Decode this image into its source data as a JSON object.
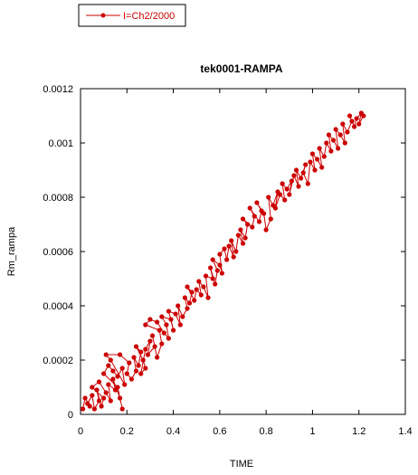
{
  "chart_data": {
    "type": "line",
    "title": "tek0001-RAMPA",
    "xlabel": "TIME",
    "ylabel": "Rm_rampa",
    "xlim": [
      0,
      1.4
    ],
    "ylim": [
      0,
      0.0012
    ],
    "x_ticks": [
      "0",
      "0.2",
      "0.4",
      "0.6",
      "0.8",
      "1",
      "1.2",
      "1.4"
    ],
    "y_ticks": [
      "0",
      "0.0002",
      "0.0004",
      "0.0006",
      "0.0008",
      "0.001",
      "0.0012"
    ],
    "grid": false,
    "legend": {
      "position": "top-left-outside",
      "entries": [
        "I=Ch2/2000"
      ]
    },
    "series": [
      {
        "name": "I=Ch2/2000",
        "color": "#cc0000",
        "marker": "circle",
        "points": [
          [
            0.01,
            2e-05
          ],
          [
            0.02,
            6e-05
          ],
          [
            0.04,
            3e-05
          ],
          [
            0.03,
            4e-05
          ],
          [
            0.05,
            7e-05
          ],
          [
            0.06,
            2e-05
          ],
          [
            0.08,
            5e-05
          ],
          [
            0.07,
            9e-05
          ],
          [
            0.09,
            3e-05
          ],
          [
            0.1,
            6e-05
          ],
          [
            0.05,
            0.0001
          ],
          [
            0.08,
            0.00012
          ],
          [
            0.11,
            8e-05
          ],
          [
            0.13,
            5e-05
          ],
          [
            0.12,
            0.00011
          ],
          [
            0.15,
            9e-05
          ],
          [
            0.14,
            0.00013
          ],
          [
            0.17,
            6e-05
          ],
          [
            0.18,
            2e-05
          ],
          [
            0.16,
            0.0001
          ],
          [
            0.1,
            0.00015
          ],
          [
            0.12,
            0.00018
          ],
          [
            0.14,
            0.00016
          ],
          [
            0.16,
            0.00014
          ],
          [
            0.18,
            0.00017
          ],
          [
            0.19,
            0.00011
          ],
          [
            0.13,
            0.0002
          ],
          [
            0.11,
            0.00022
          ],
          [
            0.17,
            0.00022
          ],
          [
            0.21,
            0.00019
          ],
          [
            0.2,
            0.00015
          ],
          [
            0.22,
            0.00013
          ],
          [
            0.24,
            0.00016
          ],
          [
            0.23,
            0.00021
          ],
          [
            0.25,
            0.00018
          ],
          [
            0.26,
            0.00023
          ],
          [
            0.24,
            0.00025
          ],
          [
            0.27,
            0.0002
          ],
          [
            0.28,
            0.00017
          ],
          [
            0.26,
            0.00015
          ],
          [
            0.28,
            0.00024
          ],
          [
            0.3,
            0.00027
          ],
          [
            0.29,
            0.00022
          ],
          [
            0.32,
            0.00025
          ],
          [
            0.31,
            0.00029
          ],
          [
            0.33,
            0.00021
          ],
          [
            0.35,
            0.00026
          ],
          [
            0.34,
            0.00031
          ],
          [
            0.28,
            0.00033
          ],
          [
            0.3,
            0.00035
          ],
          [
            0.33,
            0.00034
          ],
          [
            0.36,
            0.0003
          ],
          [
            0.38,
            0.00028
          ],
          [
            0.37,
            0.00033
          ],
          [
            0.35,
            0.00036
          ],
          [
            0.39,
            0.00035
          ],
          [
            0.4,
            0.00031
          ],
          [
            0.38,
            0.00038
          ],
          [
            0.41,
            0.00037
          ],
          [
            0.43,
            0.00033
          ],
          [
            0.42,
            0.0004
          ],
          [
            0.44,
            0.00036
          ],
          [
            0.46,
            0.00039
          ],
          [
            0.45,
            0.00043
          ],
          [
            0.47,
            0.00041
          ],
          [
            0.48,
            0.00045
          ],
          [
            0.46,
            0.00047
          ],
          [
            0.49,
            0.00042
          ],
          [
            0.5,
            0.00046
          ],
          [
            0.52,
            0.00044
          ],
          [
            0.51,
            0.00049
          ],
          [
            0.53,
            0.00047
          ],
          [
            0.55,
            0.00043
          ],
          [
            0.54,
            0.00051
          ],
          [
            0.57,
            0.0005
          ],
          [
            0.56,
            0.00054
          ],
          [
            0.58,
            0.00048
          ],
          [
            0.59,
            0.00053
          ],
          [
            0.57,
            0.00057
          ],
          [
            0.6,
            0.00055
          ],
          [
            0.61,
            0.00052
          ],
          [
            0.6,
            0.00059
          ],
          [
            0.62,
            0.00061
          ],
          [
            0.63,
            0.00057
          ],
          [
            0.64,
            0.00062
          ],
          [
            0.66,
            0.00058
          ],
          [
            0.65,
            0.00064
          ],
          [
            0.67,
            0.0006
          ],
          [
            0.68,
            0.00066
          ],
          [
            0.7,
            0.00063
          ],
          [
            0.69,
            0.00068
          ],
          [
            0.71,
            0.00065
          ],
          [
            0.72,
            0.0007
          ],
          [
            0.7,
            0.00072
          ],
          [
            0.74,
            0.00069
          ],
          [
            0.75,
            0.00073
          ],
          [
            0.73,
            0.00076
          ],
          [
            0.77,
            0.00071
          ],
          [
            0.78,
            0.00075
          ],
          [
            0.76,
            0.00078
          ],
          [
            0.79,
            0.00074
          ],
          [
            0.8,
            0.00068
          ],
          [
            0.82,
            0.00072
          ],
          [
            0.81,
            0.0008
          ],
          [
            0.83,
            0.00077
          ],
          [
            0.85,
            0.00082
          ],
          [
            0.84,
            0.00076
          ],
          [
            0.86,
            0.00081
          ],
          [
            0.88,
            0.00079
          ],
          [
            0.87,
            0.00085
          ],
          [
            0.89,
            0.00083
          ],
          [
            0.91,
            0.00086
          ],
          [
            0.9,
            0.00081
          ],
          [
            0.92,
            0.00088
          ],
          [
            0.94,
            0.00084
          ],
          [
            0.93,
            0.0009
          ],
          [
            0.95,
            0.00087
          ],
          [
            0.97,
            0.00092
          ],
          [
            0.96,
            0.00089
          ],
          [
            0.98,
            0.00085
          ],
          [
            0.99,
            0.00093
          ],
          [
            1.01,
            0.0009
          ],
          [
            1.0,
            0.00096
          ],
          [
            1.02,
            0.00094
          ],
          [
            1.04,
            0.00091
          ],
          [
            1.03,
            0.00098
          ],
          [
            1.05,
            0.00095
          ],
          [
            1.06,
            0.001
          ],
          [
            1.08,
            0.00097
          ],
          [
            1.07,
            0.00103
          ],
          [
            1.09,
            0.00101
          ],
          [
            1.11,
            0.00098
          ],
          [
            1.1,
            0.00105
          ],
          [
            1.12,
            0.00103
          ],
          [
            1.14,
            0.001
          ],
          [
            1.13,
            0.00107
          ],
          [
            1.15,
            0.00104
          ],
          [
            1.17,
            0.00108
          ],
          [
            1.16,
            0.0011
          ],
          [
            1.18,
            0.00106
          ],
          [
            1.19,
            0.00109
          ],
          [
            1.21,
            0.00111
          ],
          [
            1.2,
            0.00107
          ],
          [
            1.22,
            0.0011
          ]
        ]
      }
    ]
  }
}
